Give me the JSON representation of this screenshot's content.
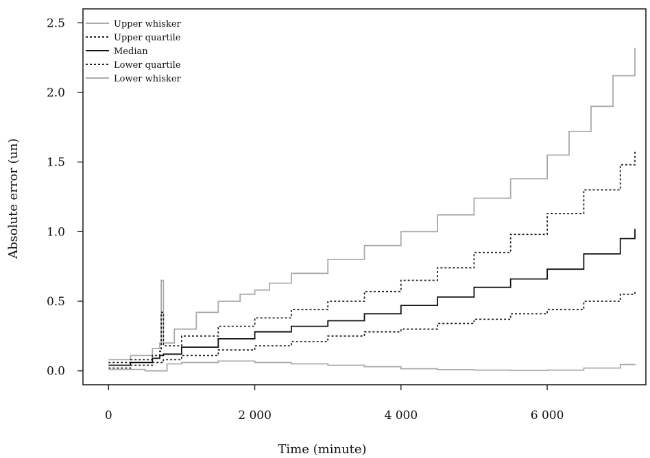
{
  "chart_data": {
    "type": "line",
    "title": "",
    "xlabel": "Time (minute)",
    "ylabel": "Absolute error (un)",
    "xlim": [
      -350,
      7350
    ],
    "ylim": [
      -0.1,
      2.6
    ],
    "xticks": [
      0,
      2000,
      4000,
      6000
    ],
    "xtick_labels": [
      "0",
      "2 000",
      "4 000",
      "6 000"
    ],
    "yticks": [
      0.0,
      0.5,
      1.0,
      1.5,
      2.0,
      2.5
    ],
    "ytick_labels": [
      "0.0",
      "0.5",
      "1.0",
      "1.5",
      "2.0",
      "2.5"
    ],
    "grid": false,
    "legend_position": "top-left",
    "series": [
      {
        "name": "Upper whisker",
        "color": "#aaaaaa",
        "dash": "solid",
        "x": [
          0,
          300,
          600,
          700,
          720,
          750,
          900,
          1200,
          1500,
          1800,
          2000,
          2200,
          2500,
          3000,
          3500,
          4000,
          4500,
          5000,
          5500,
          6000,
          6300,
          6600,
          6900,
          7200
        ],
        "y": [
          0.08,
          0.11,
          0.16,
          0.2,
          0.65,
          0.2,
          0.3,
          0.42,
          0.5,
          0.55,
          0.58,
          0.63,
          0.7,
          0.8,
          0.9,
          1.0,
          1.12,
          1.24,
          1.38,
          1.55,
          1.72,
          1.9,
          2.12,
          2.32
        ]
      },
      {
        "name": "Upper quartile",
        "color": "#222222",
        "dash": "dotted",
        "x": [
          0,
          300,
          600,
          700,
          720,
          750,
          1000,
          1500,
          2000,
          2500,
          3000,
          3500,
          4000,
          4500,
          5000,
          5500,
          6000,
          6500,
          7000,
          7200
        ],
        "y": [
          0.06,
          0.08,
          0.11,
          0.14,
          0.42,
          0.18,
          0.25,
          0.32,
          0.38,
          0.44,
          0.5,
          0.57,
          0.65,
          0.74,
          0.85,
          0.98,
          1.13,
          1.3,
          1.48,
          1.58
        ]
      },
      {
        "name": "Median",
        "color": "#111111",
        "dash": "solid",
        "x": [
          0,
          300,
          600,
          700,
          750,
          1000,
          1500,
          2000,
          2500,
          3000,
          3500,
          4000,
          4500,
          5000,
          5500,
          6000,
          6500,
          7000,
          7200
        ],
        "y": [
          0.04,
          0.06,
          0.09,
          0.11,
          0.12,
          0.17,
          0.23,
          0.28,
          0.32,
          0.36,
          0.41,
          0.47,
          0.53,
          0.6,
          0.66,
          0.73,
          0.84,
          0.95,
          1.02
        ]
      },
      {
        "name": "Lower quartile",
        "color": "#222222",
        "dash": "dotted",
        "x": [
          0,
          300,
          600,
          750,
          1000,
          1500,
          2000,
          2500,
          3000,
          3500,
          4000,
          4500,
          5000,
          5500,
          6000,
          6500,
          7000,
          7200
        ],
        "y": [
          0.02,
          0.04,
          0.06,
          0.08,
          0.11,
          0.15,
          0.18,
          0.21,
          0.25,
          0.28,
          0.3,
          0.34,
          0.37,
          0.41,
          0.44,
          0.5,
          0.55,
          0.58
        ]
      },
      {
        "name": "Lower whisker",
        "color": "#aaaaaa",
        "dash": "solid",
        "x": [
          0,
          500,
          800,
          1000,
          1500,
          2000,
          2500,
          3000,
          3500,
          4000,
          4500,
          5000,
          5500,
          6000,
          6500,
          7000,
          7200
        ],
        "y": [
          0.01,
          0.0,
          0.05,
          0.06,
          0.07,
          0.06,
          0.05,
          0.04,
          0.03,
          0.015,
          0.008,
          0.005,
          0.003,
          0.005,
          0.02,
          0.045,
          0.05
        ]
      }
    ]
  }
}
